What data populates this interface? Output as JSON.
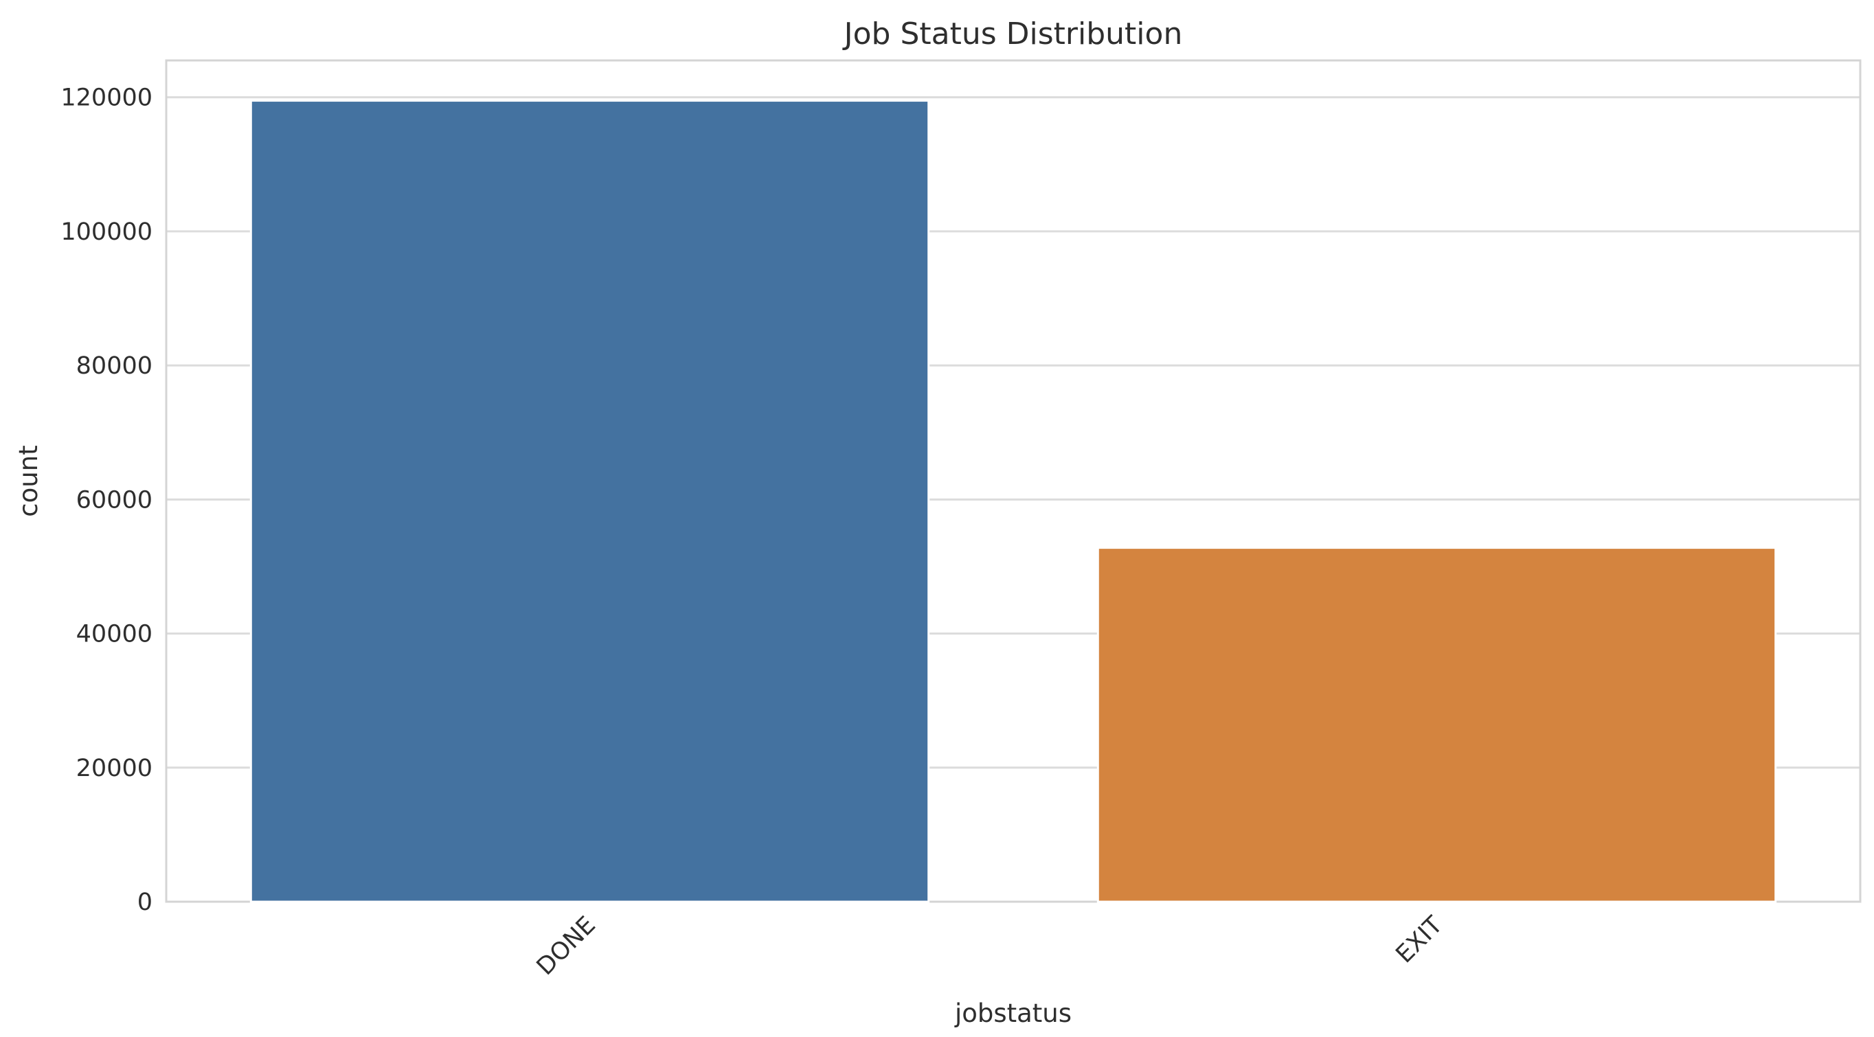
{
  "chart_data": {
    "type": "bar",
    "title": "Job Status Distribution",
    "xlabel": "jobstatus",
    "ylabel": "count",
    "categories": [
      "DONE",
      "EXIT"
    ],
    "values": [
      119500,
      52800
    ],
    "colors": [
      "#4472a0",
      "#d4843f"
    ],
    "ylim": [
      0,
      125500
    ],
    "yticks": [
      0,
      20000,
      40000,
      60000,
      80000,
      100000,
      120000
    ],
    "ytick_labels": [
      "0",
      "20000",
      "40000",
      "60000",
      "80000",
      "100000",
      "120000"
    ],
    "grid": "horizontal",
    "xtick_rotation": "45-degree"
  }
}
